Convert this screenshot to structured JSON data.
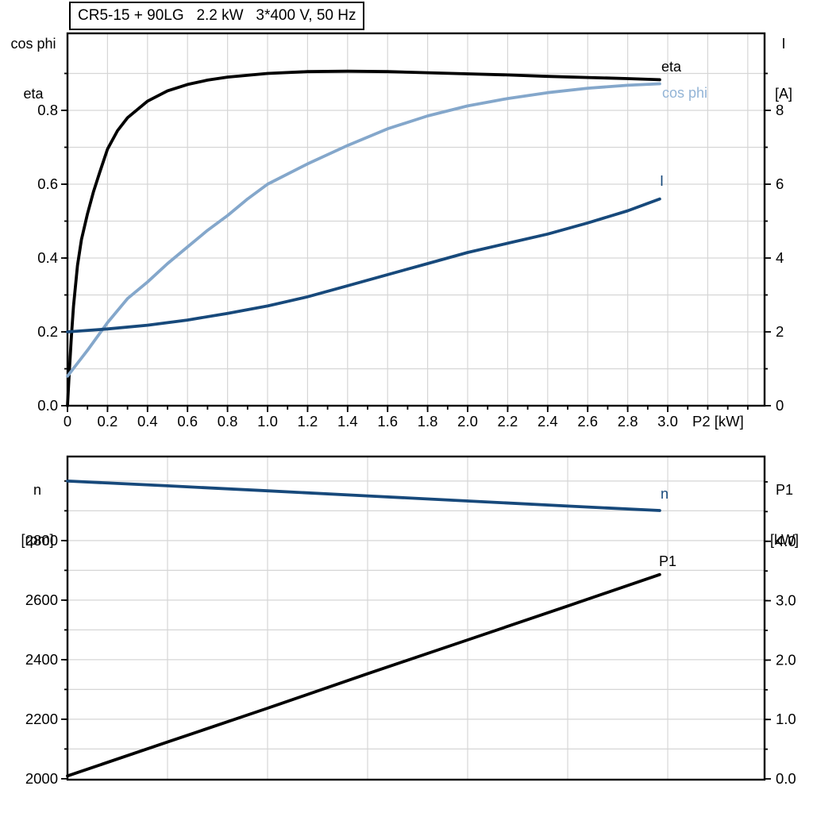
{
  "colors": {
    "black": "#000000",
    "dark_blue": "#17497b",
    "light_blue": "#84a7cb",
    "light_blue_label": "#93b4d6",
    "grid": "#d6d6d6",
    "frame": "#000000",
    "background": "#ffffff"
  },
  "chart_data": [
    {
      "type": "line",
      "title": "CR5-15 + 90LG   2.2 kW   3*400 V, 50 Hz",
      "x_axis": {
        "label": "P2 [kW]",
        "range": [
          0,
          3.484
        ],
        "tick_values": [
          0,
          0.2,
          0.4,
          0.6,
          0.8,
          1.0,
          1.2,
          1.4,
          1.6,
          1.8,
          2.0,
          2.2,
          2.4,
          2.6,
          2.8,
          3.0
        ],
        "tick_labels": [
          "0",
          "0.2",
          "0.4",
          "0.6",
          "0.8",
          "1.0",
          "1.2",
          "1.4",
          "1.6",
          "1.8",
          "2.0",
          "2.2",
          "2.4",
          "2.6",
          "2.8",
          "3.0"
        ],
        "minor": {
          "start": 0.1,
          "step": 0.1,
          "end": 3.4
        },
        "grid": {
          "start": 0.2,
          "step": 0.2,
          "end": 3.4
        }
      },
      "left_axis": {
        "label_lines": [
          "cos phi",
          "eta"
        ],
        "range": [
          0,
          1.0086
        ],
        "tick_values": [
          0.0,
          0.2,
          0.4,
          0.6,
          0.8
        ],
        "tick_labels": [
          "0.0",
          "0.2",
          "0.4",
          "0.6",
          "0.8"
        ],
        "minor": {
          "start": 0.1,
          "step": 0.1,
          "end": 0.9
        },
        "grid": {
          "start": 0.1,
          "step": 0.1,
          "end": 0.9
        }
      },
      "right_axis": {
        "label_lines": [
          "I",
          "[A]"
        ],
        "range": [
          0,
          10.086
        ],
        "tick_values": [
          0,
          2,
          4,
          6,
          8
        ],
        "tick_labels": [
          "0",
          "2",
          "4",
          "6",
          "8"
        ],
        "minor": {
          "start": 1,
          "step": 2,
          "end": 9
        }
      },
      "grid_on": true,
      "legend_position": "end-of-curve",
      "series": [
        {
          "name": "eta",
          "label": "eta",
          "axis": "left",
          "color_key": "black",
          "x": [
            0,
            0.01,
            0.02,
            0.03,
            0.05,
            0.07,
            0.1,
            0.13,
            0.16,
            0.2,
            0.25,
            0.3,
            0.4,
            0.5,
            0.6,
            0.7,
            0.8,
            1.0,
            1.2,
            1.4,
            1.6,
            1.8,
            2.0,
            2.2,
            2.4,
            2.6,
            2.8,
            2.96
          ],
          "y": [
            0,
            0.1,
            0.19,
            0.27,
            0.38,
            0.45,
            0.52,
            0.58,
            0.63,
            0.695,
            0.745,
            0.78,
            0.825,
            0.853,
            0.87,
            0.882,
            0.89,
            0.9,
            0.905,
            0.906,
            0.905,
            0.902,
            0.899,
            0.896,
            0.892,
            0.889,
            0.886,
            0.883
          ]
        },
        {
          "name": "cos-phi",
          "label": "cos phi",
          "axis": "left",
          "color_key": "light_blue",
          "x": [
            0,
            0.05,
            0.1,
            0.2,
            0.3,
            0.4,
            0.5,
            0.6,
            0.7,
            0.8,
            0.9,
            1.0,
            1.2,
            1.4,
            1.6,
            1.8,
            2.0,
            2.2,
            2.4,
            2.6,
            2.8,
            2.96
          ],
          "y": [
            0.08,
            0.115,
            0.15,
            0.225,
            0.29,
            0.335,
            0.385,
            0.43,
            0.475,
            0.515,
            0.56,
            0.6,
            0.655,
            0.705,
            0.75,
            0.785,
            0.812,
            0.832,
            0.848,
            0.86,
            0.868,
            0.872
          ]
        },
        {
          "name": "current",
          "label": "I",
          "axis": "right",
          "color_key": "dark_blue",
          "x": [
            0,
            0.2,
            0.4,
            0.6,
            0.8,
            1.0,
            1.2,
            1.4,
            1.6,
            1.8,
            2.0,
            2.2,
            2.4,
            2.6,
            2.8,
            2.96
          ],
          "y": [
            2.0,
            2.08,
            2.18,
            2.32,
            2.5,
            2.7,
            2.95,
            3.25,
            3.55,
            3.85,
            4.15,
            4.4,
            4.65,
            4.95,
            5.28,
            5.6
          ]
        }
      ]
    },
    {
      "type": "line",
      "x_axis": {
        "label": "",
        "range": [
          0,
          3.484
        ],
        "tick_values": [],
        "tick_labels": [],
        "grid": {
          "start": 0.5,
          "step": 0.5,
          "end": 3.0
        }
      },
      "left_axis": {
        "label_lines": [
          "n",
          "[rpm]"
        ],
        "range": [
          1997,
          3082.3
        ],
        "tick_values": [
          2000,
          2200,
          2400,
          2600,
          2800
        ],
        "tick_labels": [
          "2000",
          "2200",
          "2400",
          "2600",
          "2800"
        ],
        "minor": {
          "start": 2100,
          "step": 100,
          "end": 3000
        },
        "grid": {
          "start": 2100,
          "step": 100,
          "end": 3000
        }
      },
      "right_axis": {
        "label_lines": [
          "P1",
          "[kW]"
        ],
        "range": [
          -0.013,
          5.427
        ],
        "tick_values": [
          0,
          1,
          2,
          3,
          4
        ],
        "tick_labels": [
          "0.0",
          "1.0",
          "2.0",
          "3.0",
          "4.0"
        ],
        "minor": {
          "start": 0.5,
          "step": 0.5,
          "end": 5.0
        }
      },
      "grid_on": true,
      "legend_position": "end-of-curve",
      "series": [
        {
          "name": "speed",
          "label": "n",
          "axis": "left",
          "color_key": "dark_blue",
          "x": [
            0,
            0.5,
            1.0,
            1.5,
            2.0,
            2.5,
            2.96
          ],
          "y": [
            3000,
            2984,
            2967,
            2950,
            2933,
            2916,
            2901
          ]
        },
        {
          "name": "p1",
          "label": "P1",
          "axis": "right",
          "color_key": "black",
          "x": [
            0,
            0.5,
            1.0,
            1.5,
            2.0,
            2.5,
            2.96
          ],
          "y": [
            0.05,
            0.62,
            1.19,
            1.77,
            2.34,
            2.91,
            3.44
          ]
        }
      ]
    }
  ]
}
